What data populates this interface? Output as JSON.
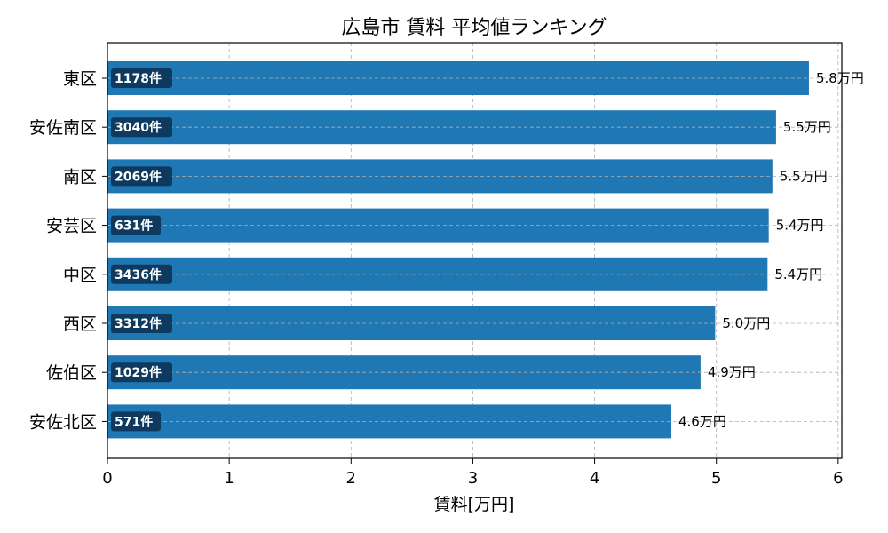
{
  "chart_data": {
    "type": "bar",
    "orientation": "horizontal",
    "title": "広島市 賃料 平均値ランキング",
    "xlabel": "賃料[万円]",
    "ylabel": "",
    "xlim": [
      0,
      6
    ],
    "xticks": [
      "0",
      "1",
      "2",
      "3",
      "4",
      "5",
      "6"
    ],
    "grid": true,
    "bar_color": "#1f77b4",
    "count_badge_color": "#0d3a5e",
    "categories": [
      "東区",
      "安佐南区",
      "南区",
      "安芸区",
      "中区",
      "西区",
      "佐伯区",
      "安佐北区"
    ],
    "values": [
      5.76,
      5.49,
      5.46,
      5.43,
      5.42,
      4.99,
      4.87,
      4.63
    ],
    "value_labels": [
      "5.8万円",
      "5.5万円",
      "5.5万円",
      "5.4万円",
      "5.4万円",
      "5.0万円",
      "4.9万円",
      "4.6万円"
    ],
    "count_labels": [
      "1178件",
      "3040件",
      "2069件",
      "631件",
      "3436件",
      "3312件",
      "1029件",
      "571件"
    ]
  }
}
